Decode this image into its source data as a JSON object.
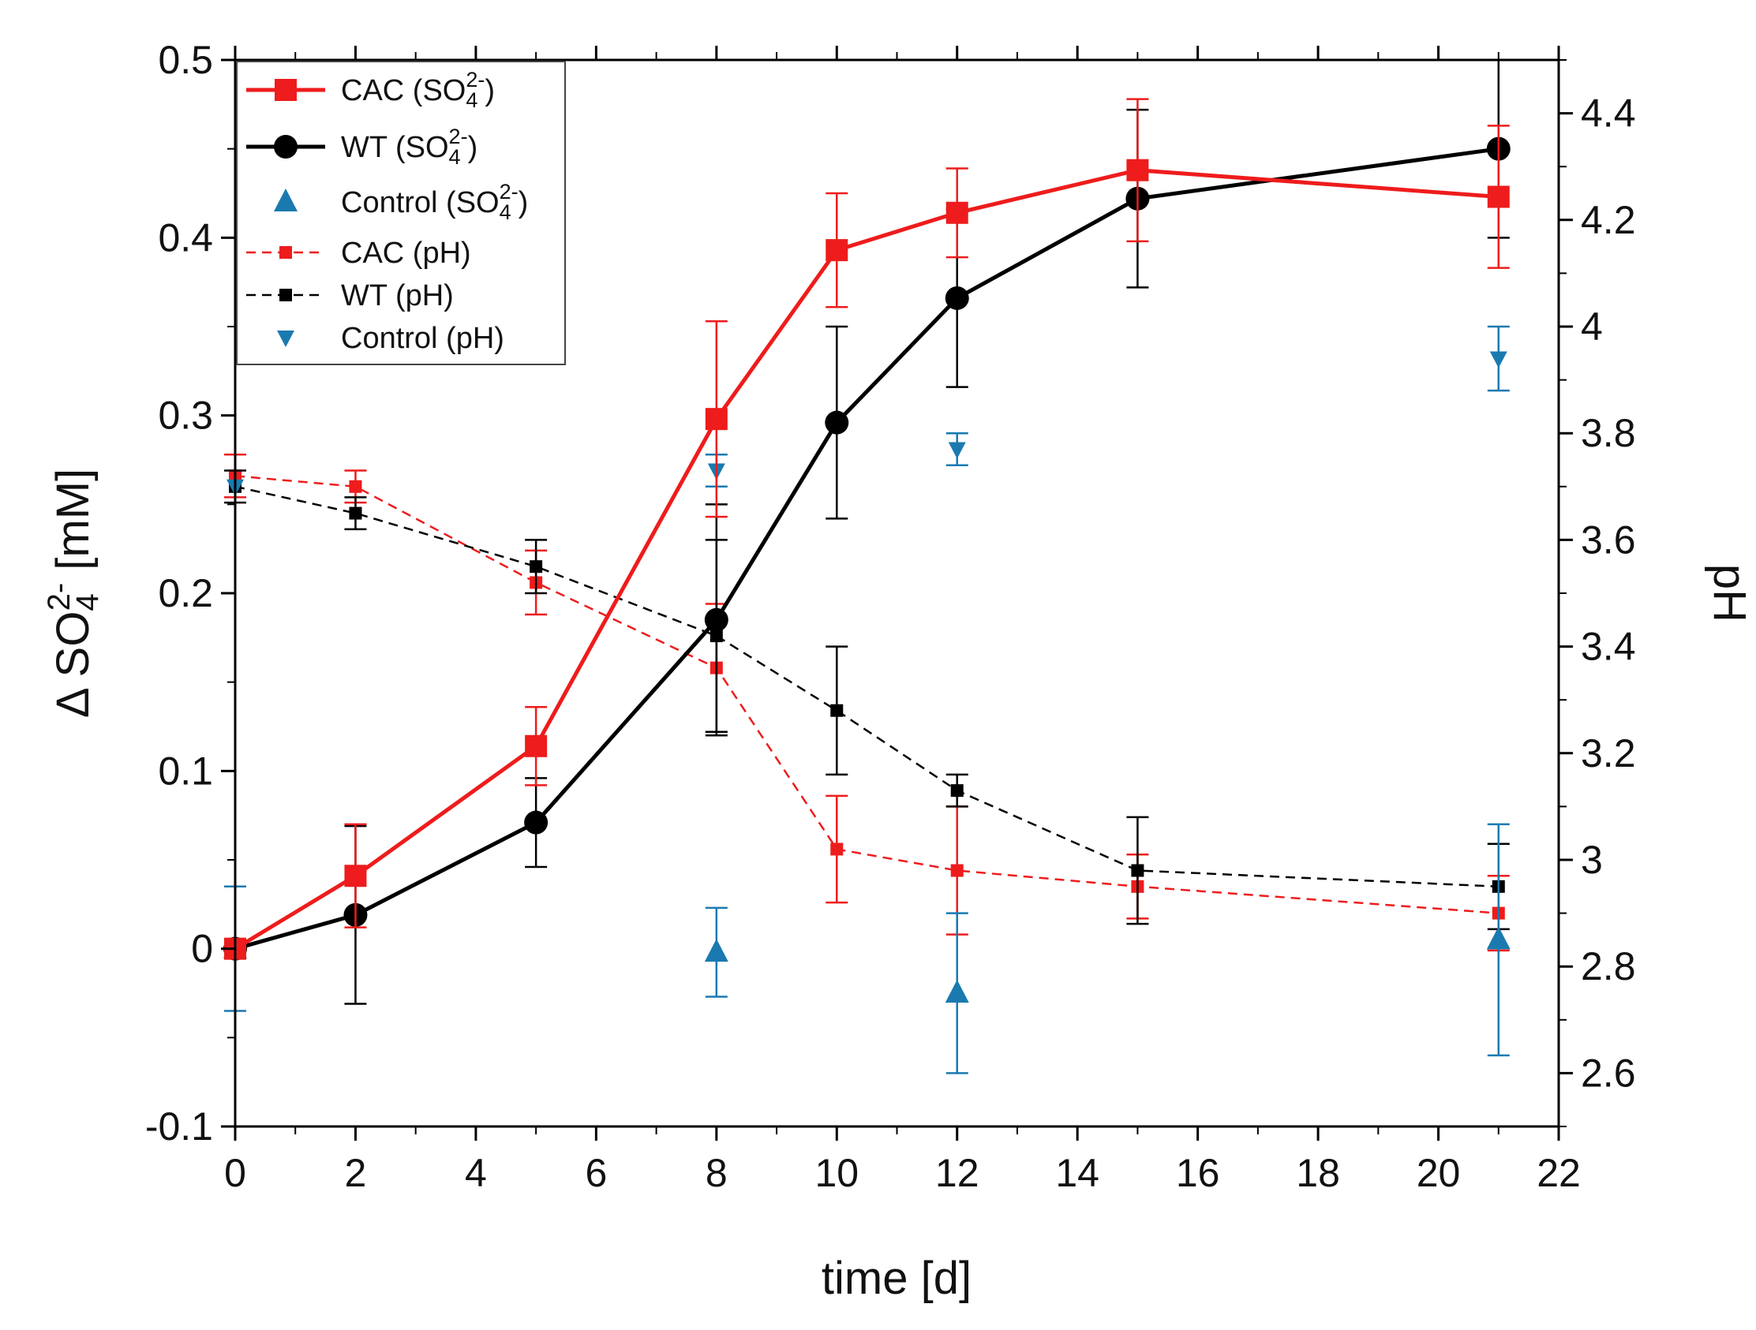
{
  "chart_data": {
    "type": "line",
    "title": "",
    "xlabel": "time [d]",
    "ylabel_left": {
      "prefix": "Δ SO",
      "sub": "4",
      "sup": "2-",
      "suffix": " [mM]"
    },
    "ylabel_right": "pH",
    "xlim": [
      0,
      22
    ],
    "ylim_left": [
      -0.1,
      0.5
    ],
    "ylim_right": [
      2.5,
      4.5
    ],
    "x_ticks": [
      0,
      2,
      4,
      6,
      8,
      10,
      12,
      14,
      16,
      18,
      20,
      22
    ],
    "x_tick_labels": [
      "0",
      "2",
      "4",
      "6",
      "8",
      "10",
      "12",
      "14",
      "16",
      "18",
      "20",
      "22"
    ],
    "y_left_ticks": [
      -0.1,
      0,
      0.1,
      0.2,
      0.3,
      0.4,
      0.5
    ],
    "y_left_tick_labels": [
      "-0.1",
      "0",
      "0.1",
      "0.2",
      "0.3",
      "0.4",
      "0.5"
    ],
    "y_right_ticks": [
      2.6,
      2.8,
      3,
      3.2,
      3.4,
      3.6,
      3.8,
      4,
      4.2,
      4.4
    ],
    "y_right_tick_labels": [
      "2.6",
      "2.8",
      "3",
      "3.2",
      "3.4",
      "3.6",
      "3.8",
      "4",
      "4.2",
      "4.4"
    ],
    "grid": false,
    "legend_position": "top-left",
    "series": [
      {
        "name": "CAC (SO4 2-)",
        "legend_base": "CAC (SO",
        "legend_sub": "4",
        "legend_sup": "2-",
        "legend_suffix": ")",
        "axis": "left",
        "color": "#ee1c1c",
        "line": "solid",
        "marker": "square-large",
        "x": [
          0,
          2,
          5,
          8,
          10,
          12,
          15,
          21
        ],
        "y": [
          0.0,
          0.041,
          0.114,
          0.298,
          0.393,
          0.414,
          0.438,
          0.423
        ],
        "err": [
          0.0,
          0.029,
          0.022,
          0.055,
          0.032,
          0.025,
          0.04,
          0.04
        ]
      },
      {
        "name": "WT (SO4 2-)",
        "legend_base": "WT (SO",
        "legend_sub": "4",
        "legend_sup": "2-",
        "legend_suffix": ")",
        "axis": "left",
        "color": "#000000",
        "line": "solid",
        "marker": "circle",
        "x": [
          0,
          2,
          5,
          8,
          10,
          12,
          15,
          21
        ],
        "y": [
          0.0,
          0.019,
          0.071,
          0.185,
          0.296,
          0.366,
          0.422,
          0.45
        ],
        "err": [
          0.0,
          0.05,
          0.025,
          0.065,
          0.054,
          0.05,
          0.05,
          0.05
        ]
      },
      {
        "name": "Control (SO4 2-)",
        "legend_base": "Control (SO",
        "legend_sub": "4",
        "legend_sup": "2-",
        "legend_suffix": ")",
        "axis": "left",
        "color": "#1a7ab0",
        "line": "none",
        "marker": "triangle-up",
        "x": [
          0,
          8,
          12,
          21
        ],
        "y": [
          0.0,
          -0.002,
          -0.025,
          0.005
        ],
        "err": [
          0.035,
          0.025,
          0.045,
          0.065
        ]
      },
      {
        "name": "CAC (pH)",
        "legend_base": "CAC (pH)",
        "axis": "right",
        "color": "#ee1c1c",
        "line": "dashed",
        "marker": "square-small",
        "x": [
          0,
          2,
          5,
          8,
          10,
          12,
          15,
          21
        ],
        "y": [
          3.72,
          3.7,
          3.52,
          3.36,
          3.02,
          2.98,
          2.95,
          2.9
        ],
        "err": [
          0.04,
          0.03,
          0.06,
          0.12,
          0.1,
          0.12,
          0.06,
          0.07
        ]
      },
      {
        "name": "WT (pH)",
        "legend_base": "WT (pH)",
        "axis": "right",
        "color": "#000000",
        "line": "dashed",
        "marker": "square-small",
        "x": [
          0,
          2,
          5,
          8,
          10,
          12,
          15,
          21
        ],
        "y": [
          3.7,
          3.65,
          3.55,
          3.42,
          3.28,
          3.13,
          2.98,
          2.95
        ],
        "err": [
          0.03,
          0.03,
          0.05,
          0.18,
          0.12,
          0.03,
          0.1,
          0.08
        ]
      },
      {
        "name": "Control (pH)",
        "legend_base": "Control (pH)",
        "axis": "right",
        "color": "#1a7ab0",
        "line": "none",
        "marker": "triangle-down",
        "x": [
          0,
          8,
          12,
          21
        ],
        "y": [
          3.7,
          3.73,
          3.77,
          3.94
        ],
        "err": [
          0.0,
          0.03,
          0.03,
          0.06
        ]
      }
    ]
  }
}
